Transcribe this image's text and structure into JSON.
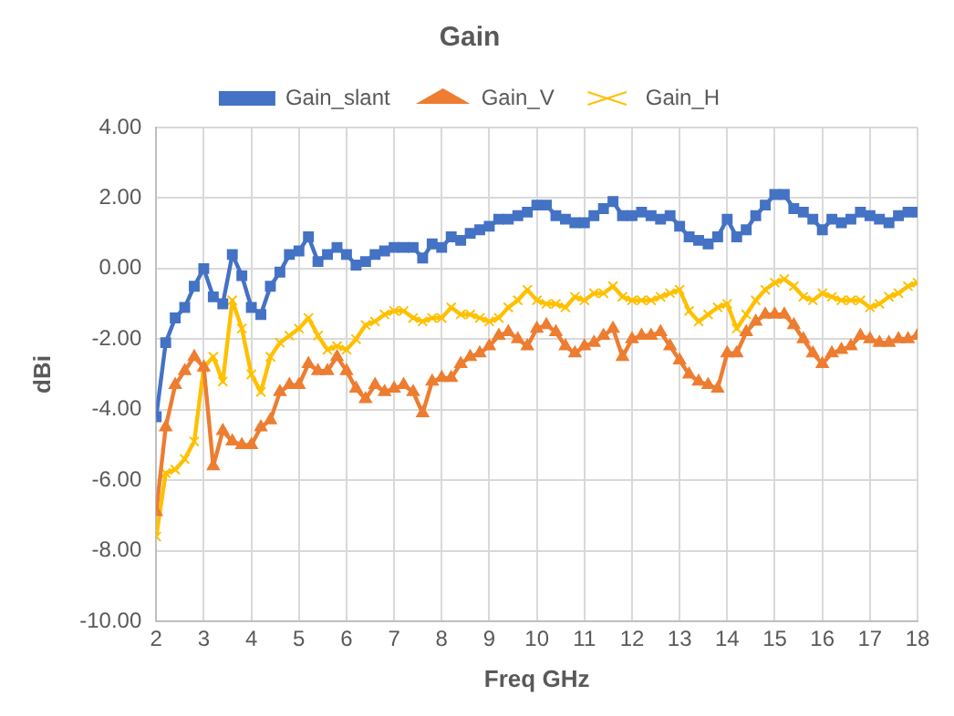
{
  "chart_data": {
    "type": "line",
    "title": "Gain",
    "xlabel": "Freq GHz",
    "ylabel": "dBi",
    "legend": "top",
    "grid": true,
    "line_style": "solid",
    "x": [
      2.0,
      2.2,
      2.4,
      2.6,
      2.8,
      3.0,
      3.2,
      3.4,
      3.6,
      3.8,
      4.0,
      4.2,
      4.4,
      4.6,
      4.8,
      5.0,
      5.2,
      5.4,
      5.6,
      5.8,
      6.0,
      6.2,
      6.4,
      6.6,
      6.8,
      7.0,
      7.2,
      7.4,
      7.6,
      7.8,
      8.0,
      8.2,
      8.4,
      8.6,
      8.8,
      9.0,
      9.2,
      9.4,
      9.6,
      9.8,
      10.0,
      10.2,
      10.4,
      10.6,
      10.8,
      11.0,
      11.2,
      11.4,
      11.6,
      11.8,
      12.0,
      12.2,
      12.4,
      12.6,
      12.8,
      13.0,
      13.2,
      13.4,
      13.6,
      13.8,
      14.0,
      14.2,
      14.4,
      14.6,
      14.8,
      15.0,
      15.2,
      15.4,
      15.6,
      15.8,
      16.0,
      16.2,
      16.4,
      16.6,
      16.8,
      17.0,
      17.2,
      17.4,
      17.6,
      17.8,
      18.0
    ],
    "xlim": [
      2,
      18
    ],
    "xticks": [
      2,
      3,
      4,
      5,
      6,
      7,
      8,
      9,
      10,
      11,
      12,
      13,
      14,
      15,
      16,
      17,
      18
    ],
    "ylim": [
      -10,
      4
    ],
    "yticks": [
      {
        "value": -10,
        "label": "-10.00"
      },
      {
        "value": -8,
        "label": "-8.00"
      },
      {
        "value": -6,
        "label": "-6.00"
      },
      {
        "value": -4,
        "label": "-4.00"
      },
      {
        "value": -2,
        "label": "-2.00"
      },
      {
        "value": 0,
        "label": "0.00"
      },
      {
        "value": 2,
        "label": "2.00"
      },
      {
        "value": 4,
        "label": "4.00"
      }
    ],
    "series": [
      {
        "name": "Gain_slant",
        "color": "#4472c4",
        "marker": "square",
        "values": [
          -4.2,
          -2.1,
          -1.4,
          -1.1,
          -0.5,
          0.0,
          -0.8,
          -1.0,
          0.4,
          -0.2,
          -1.1,
          -1.3,
          -0.5,
          -0.1,
          0.4,
          0.5,
          0.9,
          0.2,
          0.4,
          0.6,
          0.4,
          0.1,
          0.2,
          0.4,
          0.5,
          0.6,
          0.6,
          0.6,
          0.3,
          0.7,
          0.6,
          0.9,
          0.8,
          1.0,
          1.1,
          1.2,
          1.4,
          1.4,
          1.5,
          1.6,
          1.8,
          1.8,
          1.5,
          1.4,
          1.3,
          1.3,
          1.5,
          1.7,
          1.9,
          1.5,
          1.5,
          1.6,
          1.5,
          1.4,
          1.5,
          1.2,
          0.9,
          0.8,
          0.7,
          0.9,
          1.4,
          0.9,
          1.1,
          1.5,
          1.8,
          2.1,
          2.1,
          1.7,
          1.6,
          1.4,
          1.1,
          1.4,
          1.3,
          1.4,
          1.6,
          1.5,
          1.4,
          1.3,
          1.5,
          1.6,
          1.6
        ]
      },
      {
        "name": "Gain_V",
        "color": "#ed7d31",
        "marker": "triangle",
        "values": [
          -6.9,
          -4.5,
          -3.3,
          -2.9,
          -2.5,
          -2.8,
          -5.6,
          -4.6,
          -4.9,
          -5.0,
          -5.0,
          -4.5,
          -4.3,
          -3.5,
          -3.3,
          -3.3,
          -2.7,
          -2.9,
          -2.9,
          -2.5,
          -2.9,
          -3.4,
          -3.7,
          -3.3,
          -3.5,
          -3.4,
          -3.3,
          -3.5,
          -4.1,
          -3.2,
          -3.1,
          -3.1,
          -2.7,
          -2.5,
          -2.4,
          -2.2,
          -1.9,
          -1.8,
          -2.0,
          -2.2,
          -1.7,
          -1.6,
          -1.8,
          -2.2,
          -2.4,
          -2.2,
          -2.1,
          -1.9,
          -1.7,
          -2.5,
          -2.0,
          -1.9,
          -1.9,
          -1.8,
          -2.2,
          -2.6,
          -3.0,
          -3.2,
          -3.3,
          -3.4,
          -2.4,
          -2.4,
          -1.8,
          -1.5,
          -1.3,
          -1.3,
          -1.3,
          -1.6,
          -2.0,
          -2.4,
          -2.7,
          -2.4,
          -2.3,
          -2.2,
          -1.9,
          -2.0,
          -2.1,
          -2.1,
          -2.0,
          -2.0,
          -1.9
        ]
      },
      {
        "name": "Gain_H",
        "color": "#ffc000",
        "marker": "cross",
        "values": [
          -7.6,
          -5.8,
          -5.7,
          -5.4,
          -4.9,
          -2.8,
          -2.5,
          -3.2,
          -0.9,
          -1.7,
          -3.0,
          -3.5,
          -2.5,
          -2.1,
          -1.9,
          -1.7,
          -1.4,
          -1.9,
          -2.3,
          -2.2,
          -2.3,
          -2.0,
          -1.6,
          -1.5,
          -1.3,
          -1.2,
          -1.2,
          -1.4,
          -1.5,
          -1.4,
          -1.4,
          -1.1,
          -1.3,
          -1.3,
          -1.4,
          -1.5,
          -1.4,
          -1.1,
          -0.9,
          -0.6,
          -0.9,
          -1.0,
          -1.0,
          -1.1,
          -0.8,
          -0.9,
          -0.7,
          -0.7,
          -0.5,
          -0.8,
          -0.9,
          -0.9,
          -0.9,
          -0.8,
          -0.7,
          -0.6,
          -1.2,
          -1.5,
          -1.3,
          -1.1,
          -1.0,
          -1.7,
          -1.3,
          -0.9,
          -0.6,
          -0.4,
          -0.3,
          -0.5,
          -0.8,
          -0.9,
          -0.7,
          -0.8,
          -0.9,
          -0.9,
          -0.9,
          -1.1,
          -1.0,
          -0.8,
          -0.7,
          -0.5,
          -0.4
        ]
      }
    ]
  }
}
